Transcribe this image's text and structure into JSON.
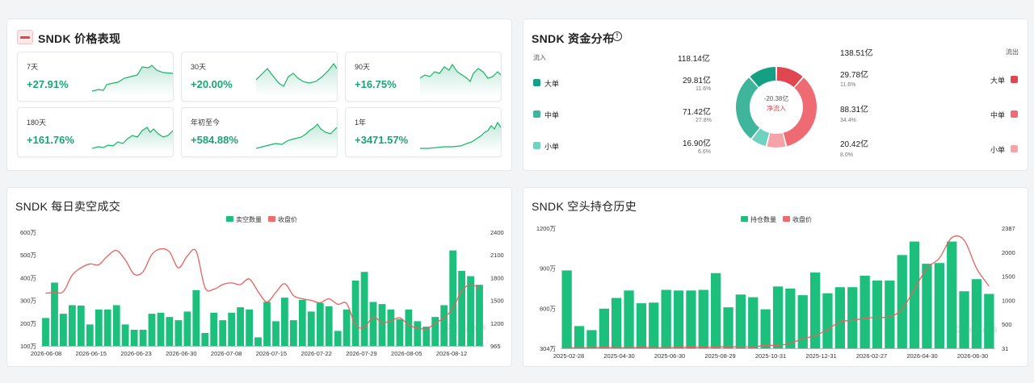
{
  "price_panel": {
    "title": "SNDK 价格表现",
    "cards": [
      {
        "label": "7天",
        "change": "+27.91%"
      },
      {
        "label": "30天",
        "change": "+20.00%"
      },
      {
        "label": "90天",
        "change": "+16.75%"
      },
      {
        "label": "180天",
        "change": "+161.76%"
      },
      {
        "label": "年初至今",
        "change": "+584.88%"
      },
      {
        "label": "1年",
        "change": "+3471.57%"
      }
    ]
  },
  "fund_panel": {
    "title": "SNDK 资金分布",
    "inflow_label": "流入",
    "inflow_total": "118.14亿",
    "outflow_label": "流出",
    "outflow_total": "138.51亿",
    "net_value": "-20.38亿",
    "net_label": "净流入",
    "inflow_rows": [
      {
        "name": "大单",
        "value": "29.81亿",
        "pct": "11.6%"
      },
      {
        "name": "中单",
        "value": "71.42亿",
        "pct": "27.8%"
      },
      {
        "name": "小单",
        "value": "16.90亿",
        "pct": "6.6%"
      }
    ],
    "outflow_rows": [
      {
        "name": "大单",
        "value": "29.78亿",
        "pct": "11.6%"
      },
      {
        "name": "中单",
        "value": "88.31亿",
        "pct": "34.4%"
      },
      {
        "name": "小单",
        "value": "20.42亿",
        "pct": "8.0%"
      }
    ],
    "colors": {
      "in_large": "#14a085",
      "in_mid": "#3fb59c",
      "in_small": "#6fd3c0",
      "out_large": "#e0464f",
      "out_mid": "#ef6b73",
      "out_small": "#f5a3a8"
    }
  },
  "short_volume_panel": {
    "title": "SNDK 每日卖空成交",
    "chart_data": {
      "type": "bar",
      "legend": [
        "卖空数量",
        "收盘价"
      ],
      "x_ticks": [
        "2026-06-08",
        "2026-06-15",
        "2026-06-23",
        "2026-06-30",
        "2026-07-08",
        "2026-07-15",
        "2026-07-22",
        "2026-07-29",
        "2026-08-05",
        "2026-08-12"
      ],
      "left_ticks": [
        "600万",
        "500万",
        "400万",
        "300万",
        "200万",
        "100万"
      ],
      "right_ticks": [
        "2400",
        "2100",
        "1800",
        "1500",
        "1200",
        "965"
      ],
      "left_range": [
        70,
        600
      ],
      "right_range": [
        965,
        2400
      ],
      "series": [
        {
          "name": "卖空数量",
          "unit": "万",
          "values": [
            200,
            365,
            220,
            260,
            258,
            170,
            240,
            240,
            260,
            170,
            145,
            145,
            220,
            225,
            205,
            190,
            230,
            330,
            130,
            225,
            190,
            225,
            250,
            240,
            110,
            275,
            185,
            295,
            190,
            285,
            230,
            270,
            255,
            140,
            240,
            375,
            415,
            275,
            265,
            240,
            195,
            240,
            185,
            160,
            205,
            260,
            515,
            420,
            395,
            355
          ]
        },
        {
          "name": "收盘价",
          "values": [
            1630,
            1640,
            1650,
            1860,
            1950,
            2000,
            1990,
            2100,
            2170,
            2050,
            1870,
            1900,
            2120,
            2190,
            2150,
            1950,
            2100,
            2160,
            1700,
            1680,
            1740,
            1760,
            1740,
            1810,
            1650,
            1520,
            1640,
            1750,
            1600,
            1560,
            1540,
            1510,
            1560,
            1490,
            1500,
            1230,
            1200,
            1330,
            1260,
            1280,
            1320,
            1230,
            1190,
            1180,
            1250,
            1320,
            1440,
            1660,
            1740,
            1690
          ]
        }
      ]
    }
  },
  "short_interest_panel": {
    "title": "SNDK 空头持仓历史",
    "chart_data": {
      "type": "bar",
      "legend": [
        "持仓数量",
        "收盘价"
      ],
      "x_ticks": [
        "2025-02-28",
        "2025-04-30",
        "2025-06-30",
        "2025-08-29",
        "2025-10-31",
        "2025-12-31",
        "2026-02-27",
        "2026-04-30",
        "2026-06-30"
      ],
      "left_ticks": [
        "1200万",
        "900万",
        "600万",
        "304万"
      ],
      "right_ticks": [
        "2387",
        "2000",
        "1500",
        "1000",
        "500",
        "31"
      ],
      "left_range": [
        304,
        1200
      ],
      "right_range": [
        31,
        2387
      ],
      "series": [
        {
          "name": "持仓数量",
          "unit": "万",
          "values": [
            885,
            470,
            440,
            600,
            680,
            735,
            640,
            645,
            740,
            735,
            735,
            740,
            865,
            610,
            705,
            685,
            595,
            765,
            750,
            700,
            870,
            715,
            760,
            760,
            845,
            810,
            810,
            1000,
            1100,
            935,
            940,
            1100,
            730,
            820,
            710
          ]
        },
        {
          "name": "收盘价",
          "values": [
            40,
            45,
            45,
            50,
            45,
            45,
            50,
            45,
            45,
            50,
            55,
            50,
            60,
            60,
            65,
            60,
            90,
            90,
            130,
            220,
            280,
            400,
            550,
            580,
            620,
            640,
            650,
            800,
            1200,
            1600,
            1800,
            2200,
            2150,
            1600,
            1250
          ]
        }
      ]
    }
  },
  "watermark": "Coinglass"
}
